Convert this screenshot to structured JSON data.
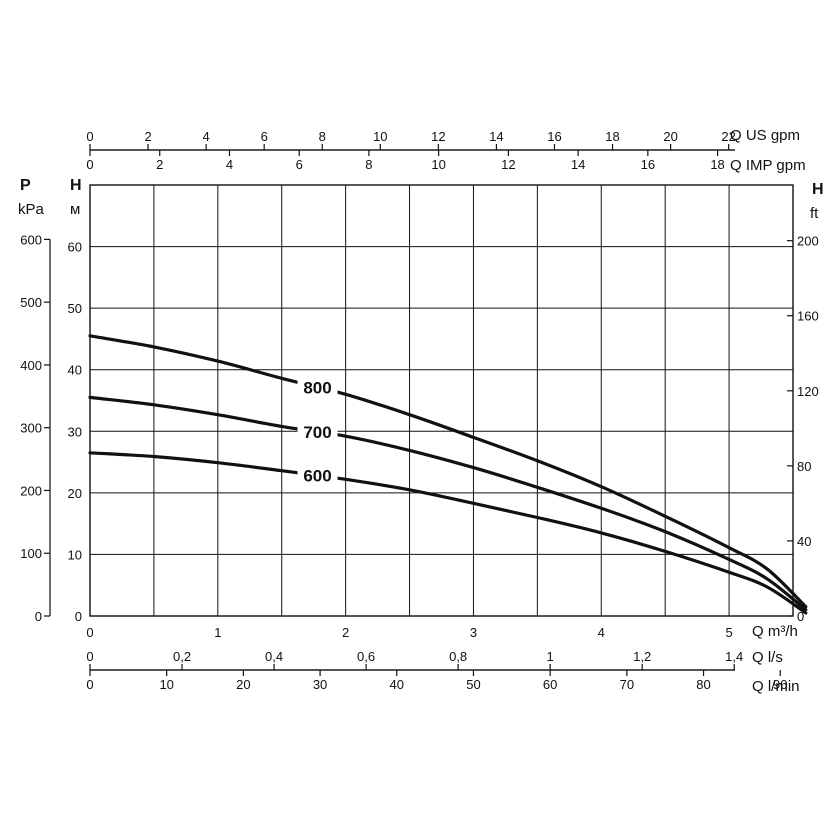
{
  "chart_data": {
    "type": "line",
    "title": "",
    "xlabel": "Q m³/h",
    "xlim": [
      0,
      5.5
    ],
    "x_ticks": [
      "0",
      "1",
      "2",
      "3",
      "4",
      "5"
    ],
    "ylabel_left": "H",
    "ylabel_left_unit": "м",
    "ylim": [
      0,
      70
    ],
    "y_ticks": [
      "0",
      "10",
      "20",
      "30",
      "40",
      "50",
      "60"
    ],
    "pressure_axis": {
      "label": "P",
      "unit": "kPa",
      "ticks": [
        "0",
        "100",
        "200",
        "300",
        "400",
        "500",
        "600"
      ]
    },
    "feet_axis": {
      "label": "H",
      "unit": "ft",
      "ticks": [
        "0",
        "40",
        "80",
        "120",
        "160",
        "200"
      ]
    },
    "us_gpm_axis": {
      "label": "Q US gpm",
      "ticks": [
        "0",
        "2",
        "4",
        "6",
        "8",
        "10",
        "12",
        "14",
        "16",
        "18",
        "20",
        "22"
      ]
    },
    "imp_gpm_axis": {
      "label": "Q IMP gpm",
      "ticks": [
        "0",
        "2",
        "4",
        "6",
        "8",
        "10",
        "12",
        "14",
        "16",
        "18"
      ]
    },
    "ls_axis": {
      "label": "Q l/s",
      "ticks": [
        "0",
        "0,2",
        "0,4",
        "0,6",
        "0,8",
        "1",
        "1,2",
        "1,4"
      ]
    },
    "lmin_axis": {
      "label": "Q l/min",
      "ticks": [
        "0",
        "10",
        "20",
        "30",
        "40",
        "50",
        "60",
        "70",
        "80",
        "90"
      ]
    },
    "grid": true,
    "series": [
      {
        "name": "800",
        "x": [
          0,
          0.5,
          1,
          1.5,
          2,
          2.5,
          3,
          3.5,
          4,
          4.5,
          5,
          5.3,
          5.6
        ],
        "y": [
          45.5,
          43.7,
          41.4,
          38.6,
          36.0,
          32.7,
          29.0,
          25.2,
          21.0,
          16.2,
          11.1,
          7.6,
          1.5
        ]
      },
      {
        "name": "700",
        "x": [
          0,
          0.5,
          1,
          1.5,
          2,
          2.5,
          3,
          3.5,
          4,
          4.5,
          5,
          5.3,
          5.6
        ],
        "y": [
          35.5,
          34.3,
          32.7,
          30.8,
          29.2,
          26.9,
          24.1,
          20.9,
          17.5,
          13.7,
          9.2,
          6.0,
          1.0
        ]
      },
      {
        "name": "600",
        "x": [
          0,
          0.5,
          1,
          1.5,
          2,
          2.5,
          3,
          3.5,
          4,
          4.5,
          5,
          5.3,
          5.6
        ],
        "y": [
          26.5,
          25.9,
          24.9,
          23.6,
          22.2,
          20.5,
          18.3,
          16.0,
          13.5,
          10.5,
          7.1,
          4.7,
          0.5
        ]
      }
    ]
  }
}
